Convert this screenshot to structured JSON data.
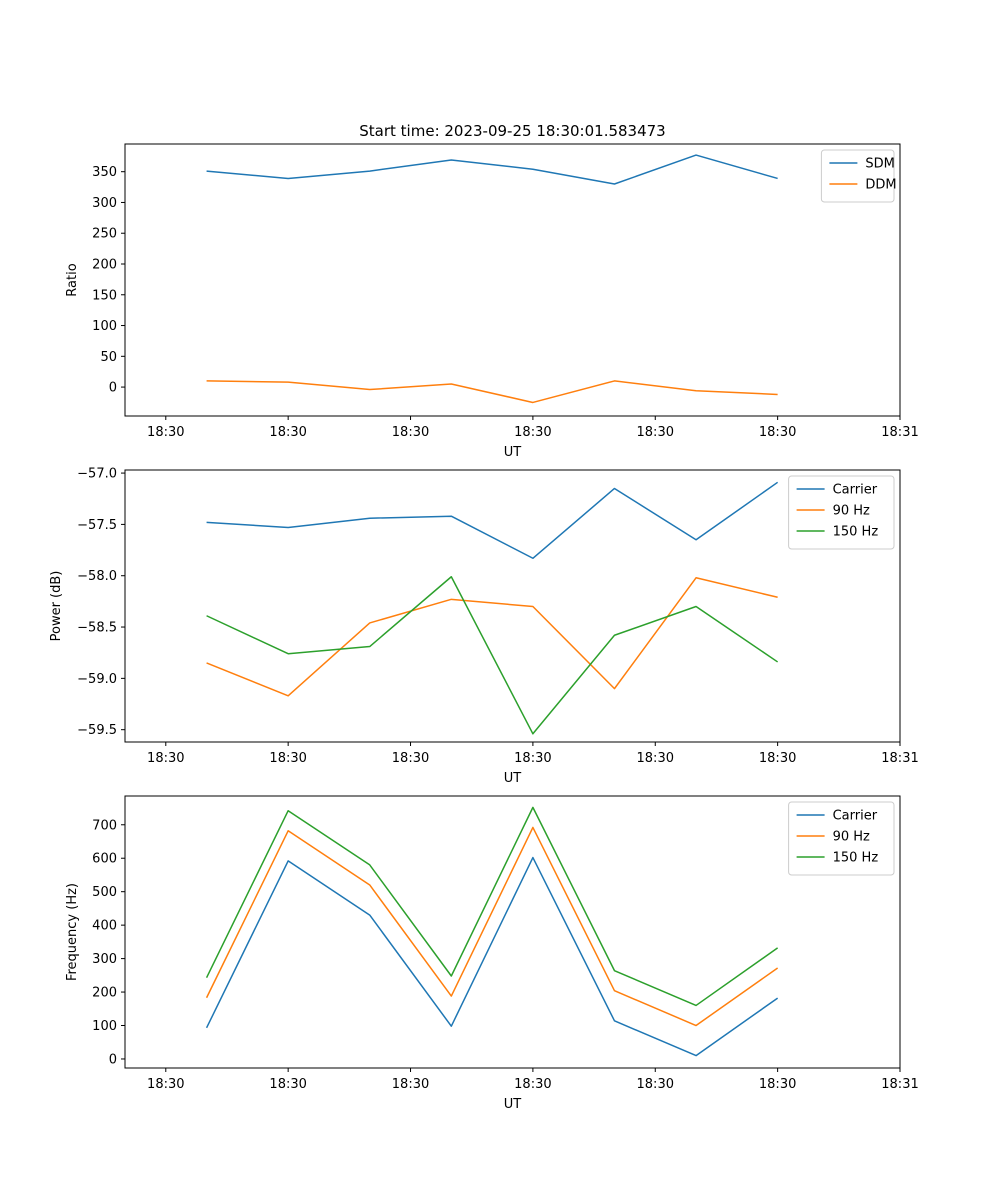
{
  "figure_title": "Start time: 2023-09-25 18:30:01.583473",
  "colors": {
    "blue": "#1f77b4",
    "orange": "#ff7f0e",
    "green": "#2ca02c"
  },
  "chart_data": [
    {
      "type": "line",
      "title": "Start time: 2023-09-25 18:30:01.583473",
      "xlabel": "UT",
      "ylabel": "Ratio",
      "x": [
        1,
        2,
        3,
        4,
        5,
        6,
        7,
        8
      ],
      "xlim": [
        0,
        9.5
      ],
      "xticks": [
        0.5,
        2,
        3.5,
        5,
        6.5,
        8,
        9.5
      ],
      "xtick_labels": [
        "18:30",
        "18:30",
        "18:30",
        "18:30",
        "18:30",
        "18:30",
        "18:31"
      ],
      "ylim": [
        -47,
        395
      ],
      "yticks": [
        0,
        50,
        100,
        150,
        200,
        250,
        300,
        350
      ],
      "ytick_labels": [
        "0",
        "50",
        "100",
        "150",
        "200",
        "250",
        "300",
        "350"
      ],
      "legend": "top-right",
      "grid": false,
      "series": [
        {
          "name": "SDM",
          "color": "#1f77b4",
          "values": [
            351,
            339,
            351,
            369,
            354,
            330,
            377,
            339
          ]
        },
        {
          "name": "DDM",
          "color": "#ff7f0e",
          "values": [
            10,
            8,
            -4,
            5,
            -25,
            10,
            -6,
            -12
          ]
        }
      ]
    },
    {
      "type": "line",
      "title": "",
      "xlabel": "UT",
      "ylabel": "Power (dB)",
      "x": [
        1,
        2,
        3,
        4,
        5,
        6,
        7,
        8
      ],
      "xlim": [
        0,
        9.5
      ],
      "xticks": [
        0.5,
        2,
        3.5,
        5,
        6.5,
        8,
        9.5
      ],
      "xtick_labels": [
        "18:30",
        "18:30",
        "18:30",
        "18:30",
        "18:30",
        "18:30",
        "18:31"
      ],
      "ylim": [
        -59.62,
        -56.97
      ],
      "yticks": [
        -59.5,
        -59.0,
        -58.5,
        -58.0,
        -57.5,
        -57.0
      ],
      "ytick_labels": [
        "−59.5",
        "−59.0",
        "−58.5",
        "−58.0",
        "−57.5",
        "−57.0"
      ],
      "legend": "top-right",
      "grid": false,
      "series": [
        {
          "name": "Carrier",
          "color": "#1f77b4",
          "values": [
            -57.48,
            -57.53,
            -57.44,
            -57.42,
            -57.83,
            -57.15,
            -57.65,
            -57.09
          ]
        },
        {
          "name": "90 Hz",
          "color": "#ff7f0e",
          "values": [
            -58.85,
            -59.17,
            -58.46,
            -58.23,
            -58.3,
            -59.1,
            -58.02,
            -58.21
          ]
        },
        {
          "name": "150 Hz",
          "color": "#2ca02c",
          "values": [
            -58.39,
            -58.76,
            -58.69,
            -58.01,
            -59.54,
            -58.58,
            -58.3,
            -58.84
          ]
        }
      ]
    },
    {
      "type": "line",
      "title": "",
      "xlabel": "UT",
      "ylabel": "Frequency (Hz)",
      "x": [
        1,
        2,
        3,
        4,
        5,
        6,
        7,
        8
      ],
      "xlim": [
        0,
        9.5
      ],
      "xticks": [
        0.5,
        2,
        3.5,
        5,
        6.5,
        8,
        9.5
      ],
      "xtick_labels": [
        "18:30",
        "18:30",
        "18:30",
        "18:30",
        "18:30",
        "18:30",
        "18:31"
      ],
      "ylim": [
        -27,
        786
      ],
      "yticks": [
        0,
        100,
        200,
        300,
        400,
        500,
        600,
        700
      ],
      "ytick_labels": [
        "0",
        "100",
        "200",
        "300",
        "400",
        "500",
        "600",
        "700"
      ],
      "legend": "top-right",
      "grid": false,
      "series": [
        {
          "name": "Carrier",
          "color": "#1f77b4",
          "values": [
            93,
            592,
            430,
            98,
            602,
            114,
            10,
            182
          ]
        },
        {
          "name": "90 Hz",
          "color": "#ff7f0e",
          "values": [
            183,
            682,
            520,
            188,
            692,
            204,
            100,
            272
          ]
        },
        {
          "name": "150 Hz",
          "color": "#2ca02c",
          "values": [
            243,
            742,
            580,
            248,
            752,
            264,
            160,
            332
          ]
        }
      ]
    }
  ]
}
